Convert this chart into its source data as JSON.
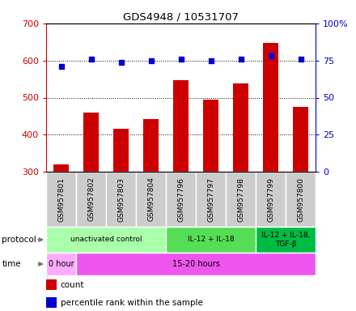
{
  "title": "GDS4948 / 10531707",
  "samples": [
    "GSM957801",
    "GSM957802",
    "GSM957803",
    "GSM957804",
    "GSM957796",
    "GSM957797",
    "GSM957798",
    "GSM957799",
    "GSM957800"
  ],
  "counts": [
    320,
    460,
    415,
    443,
    548,
    495,
    538,
    648,
    474
  ],
  "percentile_ranks": [
    71,
    76,
    74,
    75,
    76,
    75,
    76,
    78,
    76
  ],
  "ylim_left": [
    300,
    700
  ],
  "ylim_right": [
    0,
    100
  ],
  "yticks_left": [
    300,
    400,
    500,
    600,
    700
  ],
  "yticks_right": [
    0,
    25,
    50,
    75,
    100
  ],
  "protocol_groups": [
    {
      "label": "unactivated control",
      "start": 0,
      "end": 4,
      "color": "#aaffaa"
    },
    {
      "label": "IL-12 + IL-18",
      "start": 4,
      "end": 7,
      "color": "#55dd55"
    },
    {
      "label": "IL-12 + IL-18,\nTGF-β",
      "start": 7,
      "end": 9,
      "color": "#00bb44"
    }
  ],
  "time_groups": [
    {
      "label": "0 hour",
      "start": 0,
      "end": 1,
      "color": "#ffaaff"
    },
    {
      "label": "15-20 hours",
      "start": 1,
      "end": 9,
      "color": "#ee55ee"
    }
  ],
  "bar_color": "#cc0000",
  "dot_color": "#0000cc",
  "legend_count_color": "#cc0000",
  "legend_pct_color": "#0000cc",
  "left_axis_color": "#cc0000",
  "right_axis_color": "#0000cc",
  "grid_color": "#000000",
  "sample_box_color": "#cccccc",
  "bg_color": "#ffffff"
}
